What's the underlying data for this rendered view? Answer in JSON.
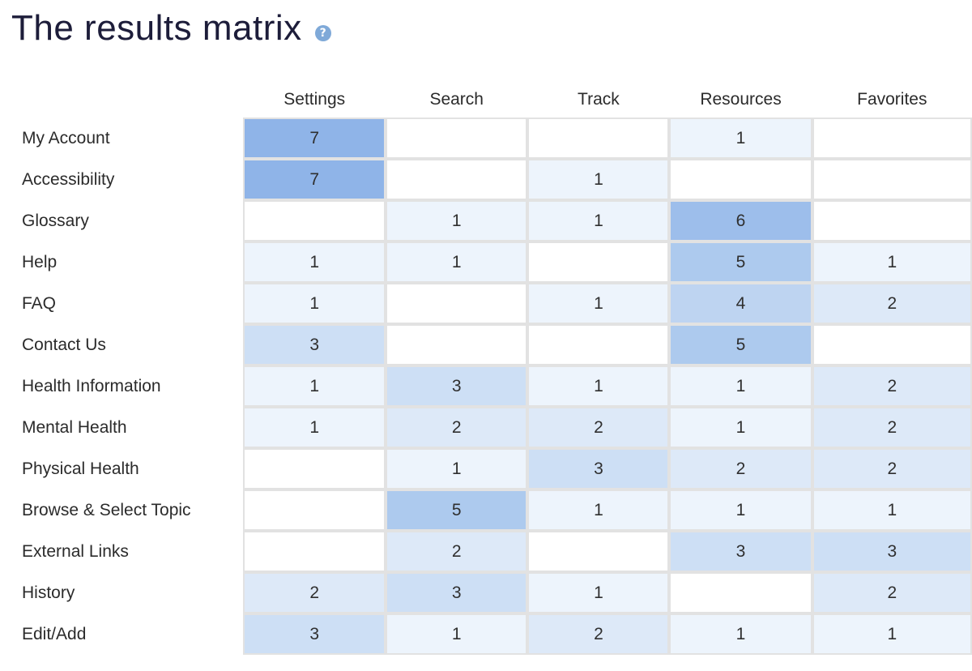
{
  "title": "The results matrix",
  "help_icon": "?",
  "columns": [
    "Settings",
    "Search",
    "Track",
    "Resources",
    "Favorites"
  ],
  "rows": [
    {
      "label": "My Account",
      "values": [
        "7",
        "",
        "",
        "1",
        ""
      ]
    },
    {
      "label": "Accessibility",
      "values": [
        "7",
        "",
        "1",
        "",
        ""
      ]
    },
    {
      "label": "Glossary",
      "values": [
        "",
        "1",
        "1",
        "6",
        ""
      ]
    },
    {
      "label": "Help",
      "values": [
        "1",
        "1",
        "",
        "5",
        "1"
      ]
    },
    {
      "label": "FAQ",
      "values": [
        "1",
        "",
        "1",
        "4",
        "2"
      ]
    },
    {
      "label": "Contact Us",
      "values": [
        "3",
        "",
        "",
        "5",
        ""
      ]
    },
    {
      "label": "Health Information",
      "values": [
        "1",
        "3",
        "1",
        "1",
        "2"
      ]
    },
    {
      "label": "Mental Health",
      "values": [
        "1",
        "2",
        "2",
        "1",
        "2"
      ]
    },
    {
      "label": "Physical Health",
      "values": [
        "",
        "1",
        "3",
        "2",
        "2"
      ]
    },
    {
      "label": "Browse & Select Topic",
      "values": [
        "",
        "5",
        "1",
        "1",
        "1"
      ]
    },
    {
      "label": "External Links",
      "values": [
        "",
        "2",
        "",
        "3",
        "3"
      ]
    },
    {
      "label": "History",
      "values": [
        "2",
        "3",
        "1",
        "",
        "2"
      ]
    },
    {
      "label": "Edit/Add",
      "values": [
        "3",
        "1",
        "2",
        "1",
        "1"
      ]
    }
  ],
  "colors": {
    "empty": "#ffffff",
    "heat_1": "#edf4fc",
    "heat_2": "#dde9f8",
    "heat_3": "#cddff5",
    "heat_4": "#bed4f1",
    "heat_5": "#adcaee",
    "heat_6": "#9dbeeb",
    "heat_7": "#8fb4e8",
    "title": "#1d1d3a",
    "help_icon": "#7fa9d8",
    "grid_border": "#e2e2e2"
  }
}
